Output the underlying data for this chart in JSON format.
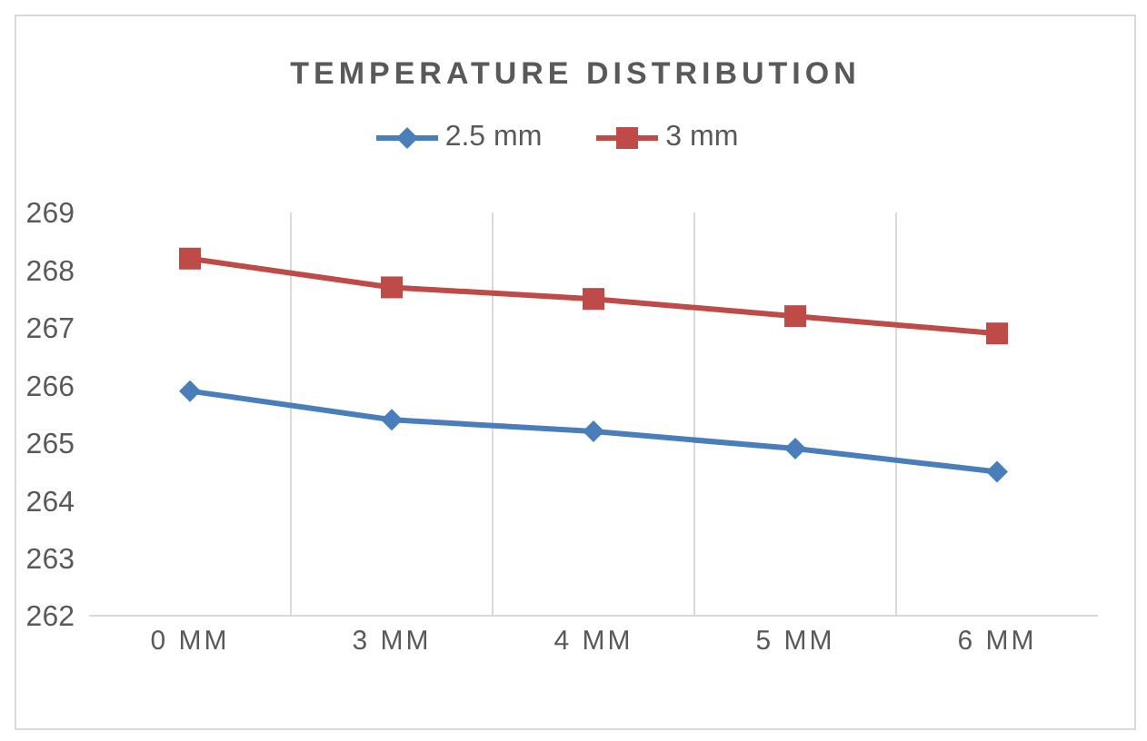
{
  "chart_data": {
    "type": "line",
    "title": "TEMPERATURE DISTRIBUTION",
    "categories": [
      "0 MM",
      "3 MM",
      "4 MM",
      "5 MM",
      "6 MM"
    ],
    "series": [
      {
        "name": "2.5 mm",
        "color": "#4a7ebb",
        "marker": "diamond",
        "values": [
          265.9,
          265.4,
          265.2,
          264.9,
          264.5
        ]
      },
      {
        "name": "3 mm",
        "color": "#be4b48",
        "marker": "square",
        "values": [
          268.2,
          267.7,
          267.5,
          267.2,
          266.9
        ]
      }
    ],
    "ylim": [
      262,
      269
    ],
    "yticks": [
      262,
      263,
      264,
      265,
      266,
      267,
      268,
      269
    ],
    "grid": "x",
    "legend": "top"
  }
}
